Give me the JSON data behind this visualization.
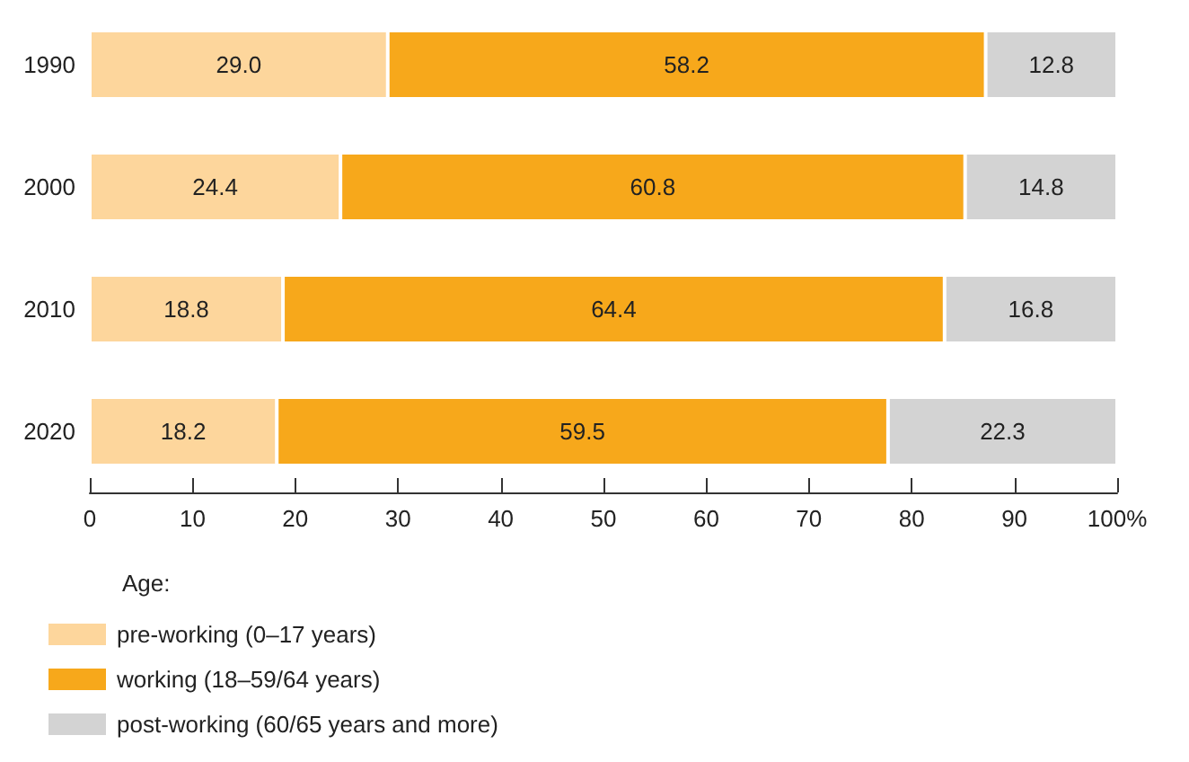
{
  "chart_data": {
    "type": "bar",
    "orientation": "horizontal",
    "stacked": true,
    "categories": [
      "1990",
      "2000",
      "2010",
      "2020"
    ],
    "series": [
      {
        "name": "pre-working (0–17 years)",
        "color": "#fdd69c",
        "values": [
          29.0,
          24.4,
          18.8,
          18.2
        ],
        "value_labels": [
          "29.0",
          "24.4",
          "18.8",
          "18.2"
        ]
      },
      {
        "name": "working (18–59/64 years)",
        "color": "#f7a81b",
        "values": [
          58.2,
          60.8,
          64.4,
          59.5
        ],
        "value_labels": [
          "58.2",
          "60.8",
          "64.4",
          "59.5"
        ]
      },
      {
        "name": "post-working (60/65 years and more)",
        "color": "#d3d3d3",
        "values": [
          12.8,
          14.8,
          16.8,
          22.3
        ],
        "value_labels": [
          "12.8",
          "14.8",
          "16.8",
          "22.3"
        ]
      }
    ],
    "xlim": [
      0,
      100
    ],
    "xticks": [
      0,
      10,
      20,
      30,
      40,
      50,
      60,
      70,
      80,
      90,
      {
        "value": 100,
        "label": "100%"
      }
    ],
    "legend": "bottom left",
    "legend_title": "Age:"
  }
}
